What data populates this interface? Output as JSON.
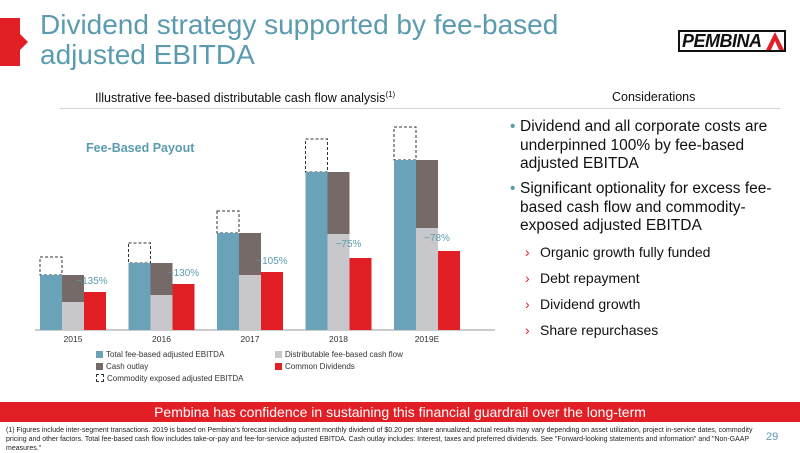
{
  "slide": {
    "title": "Dividend strategy supported by fee-based adjusted EBITDA",
    "logo_text": "PEMBINA",
    "chart_heading": "Illustrative fee-based distributable cash flow analysis",
    "chart_heading_note": "(1)",
    "considerations_heading": "Considerations",
    "fee_based_payout_label": "Fee-Based Payout",
    "bullets": [
      "Dividend and all corporate costs are underpinned 100% by fee-based adjusted EBITDA",
      "Significant optionality for excess fee-based cash flow and commodity-exposed adjusted EBITDA"
    ],
    "sub_bullets": [
      "Organic growth fully funded",
      "Debt repayment",
      "Dividend growth",
      "Share repurchases"
    ],
    "banner": "Pembina has confidence in sustaining this financial guardrail over the long-term",
    "footnote": "(1) Figures include inter-segment transactions.  2019 is based on Pembina's forecast including current monthly dividend of $0.20 per share annualized; actual results may vary depending on asset utilization, project in-service dates, commodity pricing and other factors.  Total fee-based cash flow includes take-or-pay and fee-for-service adjusted EBITDA.  Cash outlay includes: Interest, taxes and preferred dividends.  See \"Forward-looking statements and information\" and \"Non-GAAP measures.\"",
    "page_number": "29"
  },
  "colors": {
    "title": "#5b9bb0",
    "red": "#e31f26",
    "fee_based": "#6aa3b8",
    "cash_outlay": "#756a67",
    "distributable": "#c8c8cc",
    "dividends": "#e31f26"
  },
  "chart_data": {
    "type": "bar",
    "categories": [
      "2015",
      "2016",
      "2017",
      "2018",
      "2019E"
    ],
    "series": [
      {
        "name": "Total fee-based adjusted EBITDA",
        "values": [
          55,
          67,
          97,
          158,
          170
        ]
      },
      {
        "name": "Cash outlay",
        "values": [
          27,
          32,
          42,
          62,
          68
        ]
      },
      {
        "name": "Distributable fee-based cash flow",
        "values": [
          28,
          35,
          55,
          96,
          102
        ]
      },
      {
        "name": "Common Dividends",
        "values": [
          38,
          46,
          58,
          72,
          79
        ]
      },
      {
        "name": "Commodity exposed adjusted EBITDA",
        "values": [
          18,
          20,
          22,
          33,
          33
        ]
      }
    ],
    "payout_labels": [
      "~135%",
      "~130%",
      "~105%",
      "~75%",
      "~78%"
    ],
    "ylim": [
      0,
      205
    ],
    "legend": [
      "Total fee-based adjusted EBITDA",
      "Distributable fee-based cash flow",
      "Cash outlay",
      "Common Dividends",
      "Commodity exposed adjusted EBITDA"
    ]
  }
}
